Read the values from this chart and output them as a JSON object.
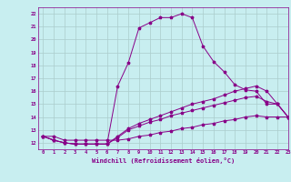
{
  "xlabel": "Windchill (Refroidissement éolien,°C)",
  "background_color": "#c8eef0",
  "line_color": "#880088",
  "grid_color": "#aacccc",
  "xlim": [
    -0.5,
    23
  ],
  "ylim": [
    11.5,
    22.5
  ],
  "xticks": [
    0,
    1,
    2,
    3,
    4,
    5,
    6,
    7,
    8,
    9,
    10,
    11,
    12,
    13,
    14,
    15,
    16,
    17,
    18,
    19,
    20,
    21,
    22,
    23
  ],
  "yticks": [
    12,
    13,
    14,
    15,
    16,
    17,
    18,
    19,
    20,
    21,
    22
  ],
  "series": [
    [
      12.5,
      12.2,
      12.0,
      11.9,
      11.9,
      11.9,
      11.9,
      16.4,
      18.2,
      20.9,
      21.3,
      21.7,
      21.7,
      22.0,
      21.7,
      19.5,
      18.3,
      17.5,
      16.5,
      16.1,
      16.0,
      15.0,
      15.0,
      14.0
    ],
    [
      12.5,
      12.2,
      12.0,
      11.9,
      11.9,
      11.9,
      11.9,
      12.5,
      13.1,
      13.5,
      13.8,
      14.1,
      14.4,
      14.7,
      15.0,
      15.2,
      15.4,
      15.7,
      16.0,
      16.2,
      16.4,
      16.0,
      15.0,
      14.0
    ],
    [
      12.5,
      12.2,
      12.0,
      11.9,
      11.9,
      11.9,
      11.9,
      12.4,
      13.0,
      13.3,
      13.6,
      13.8,
      14.1,
      14.3,
      14.5,
      14.7,
      14.9,
      15.1,
      15.3,
      15.5,
      15.6,
      15.2,
      15.0,
      14.0
    ],
    [
      12.5,
      12.5,
      12.2,
      12.2,
      12.2,
      12.2,
      12.2,
      12.2,
      12.3,
      12.5,
      12.6,
      12.8,
      12.9,
      13.1,
      13.2,
      13.4,
      13.5,
      13.7,
      13.8,
      14.0,
      14.1,
      14.0,
      14.0,
      14.0
    ]
  ]
}
